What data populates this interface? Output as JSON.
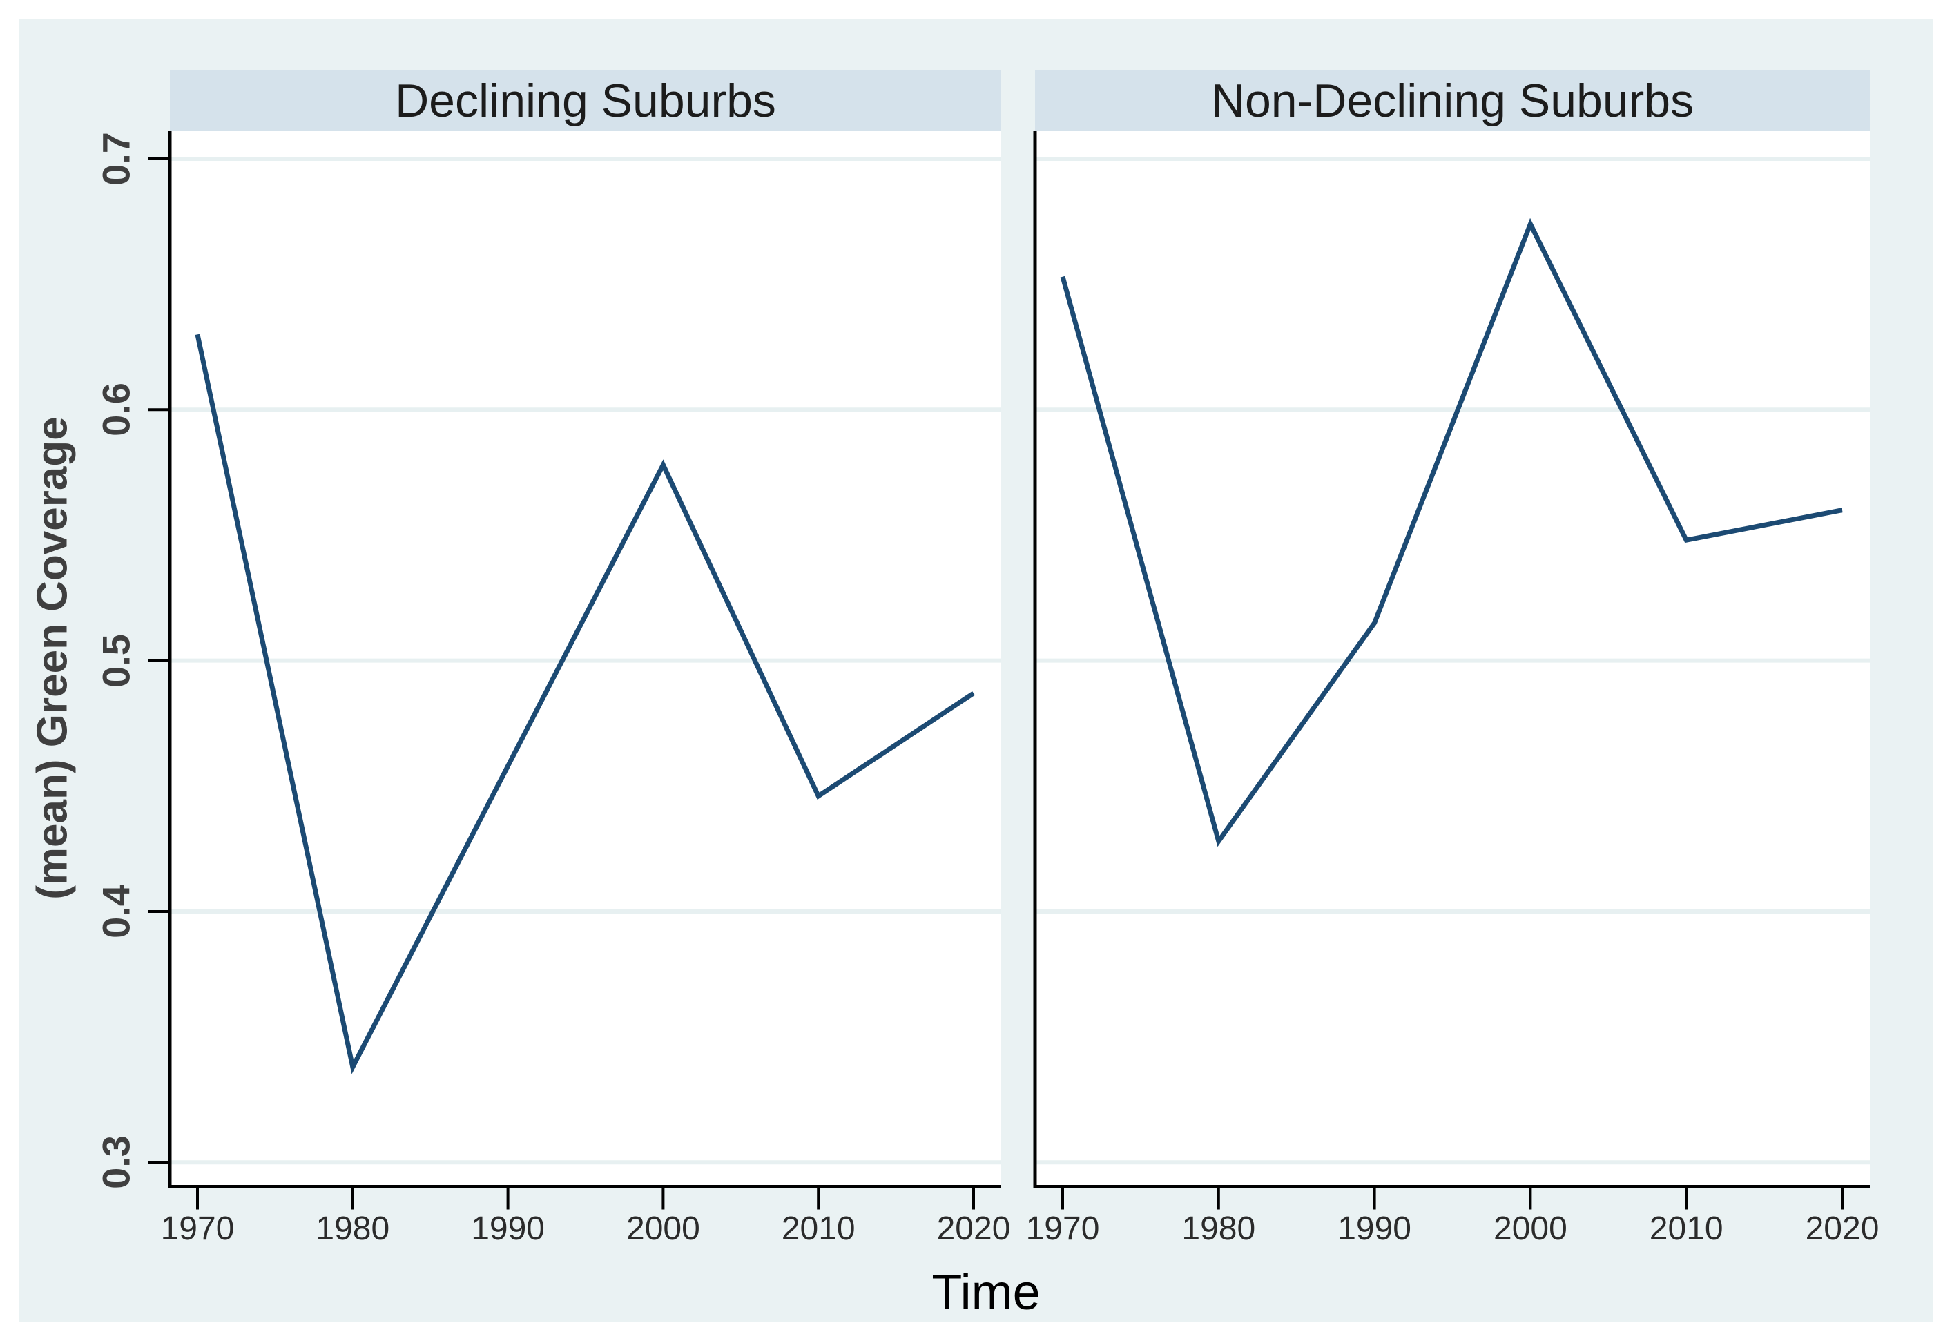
{
  "colors": {
    "canvas_bg": "#ffffff",
    "graph_bg": "#eaf2f3",
    "strip_bg": "#d5e2eb",
    "plot_bg": "#ffffff",
    "grid": "#e7f0f1",
    "line": "#1c4a73",
    "axis": "#000000",
    "y_tick_label": "#3f3f3f",
    "x_tick_label": "#2b2b2b",
    "panel_title_text": "#1c1c1c"
  },
  "chart_data": {
    "type": "line",
    "xlabel": "Time",
    "ylabel": "(mean) Green Coverage",
    "x": [
      1970,
      1980,
      1990,
      2000,
      2010,
      2020
    ],
    "xlim": [
      1970,
      2020
    ],
    "ylim": [
      0.291,
      0.711
    ],
    "yticks": [
      0.3,
      0.4,
      0.5,
      0.6,
      0.7
    ],
    "ytick_labels": [
      "0.3",
      "0.4",
      "0.5",
      "0.6",
      "0.7"
    ],
    "xtick_labels": [
      "1970",
      "1980",
      "1990",
      "2000",
      "2010",
      "2020"
    ],
    "grid": true,
    "legend": "none",
    "panels": [
      {
        "title": "Declining Suburbs",
        "series_values": [
          0.63,
          0.338,
          0.458,
          0.578,
          0.446,
          0.487
        ]
      },
      {
        "title": "Non-Declining Suburbs",
        "series_values": [
          0.653,
          0.428,
          0.515,
          0.674,
          0.548,
          0.56
        ]
      }
    ]
  }
}
